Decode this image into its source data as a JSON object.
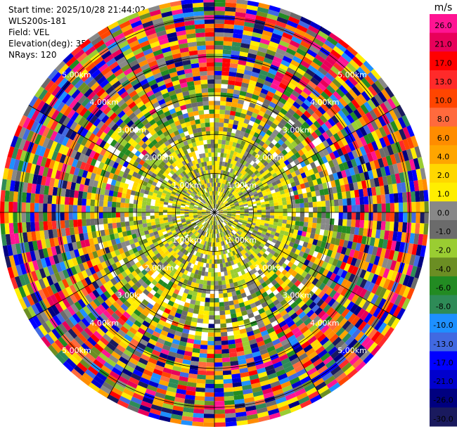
{
  "header": {
    "start_time": "Start time: 2025/10/28 21:44:02",
    "station": "WLS200s-181",
    "field": "Field: VEL",
    "elevation": "Elevation(deg): 35.00",
    "nrays": "NRays: 120"
  },
  "colorbar": {
    "unit": "m/s",
    "ticks": [
      "26.0",
      "21.0",
      "17.0",
      "13.0",
      "10.0",
      "8.0",
      "6.0",
      "4.0",
      "2.0",
      "1.0",
      "0.0",
      "-1.0",
      "-2.0",
      "-4.0",
      "-6.0",
      "-8.0",
      "-10.0",
      "-13.0",
      "-17.0",
      "-21.0",
      "-26.0",
      "-30.0"
    ],
    "colors": [
      "#ff1493",
      "#e8005a",
      "#ff0000",
      "#ff2a2a",
      "#ff4500",
      "#ff6a3d",
      "#ff8c00",
      "#ffa500",
      "#ffd700",
      "#ffee00",
      "#888888",
      "#6b6b6b",
      "#9acd32",
      "#6b8e23",
      "#228b22",
      "#2e8b57",
      "#1e90ff",
      "#4169e1",
      "#0000ff",
      "#0000cd",
      "#000080",
      "#1a1a5e"
    ]
  },
  "chart_data": {
    "type": "heatmap",
    "field": "VEL",
    "unit": "m/s",
    "nrays": 120,
    "elevation_deg": 35.0,
    "max_range_km": 5.5,
    "range_ring_labels": [
      "1.00km",
      "2.00km",
      "3.00km",
      "4.00km",
      "5.00km"
    ],
    "range_rings_km": [
      1,
      2,
      3,
      4,
      5
    ],
    "color_scale_min": -30.0,
    "color_scale_max": 26.0,
    "regions": [
      {
        "range_km": [
          0,
          3.0
        ],
        "dominant": "yellow / olive green / grey (near zero to low positive)"
      },
      {
        "range_km": [
          3.0,
          5.5
        ],
        "dominant": "noisy mixed colors across full scale"
      }
    ]
  }
}
